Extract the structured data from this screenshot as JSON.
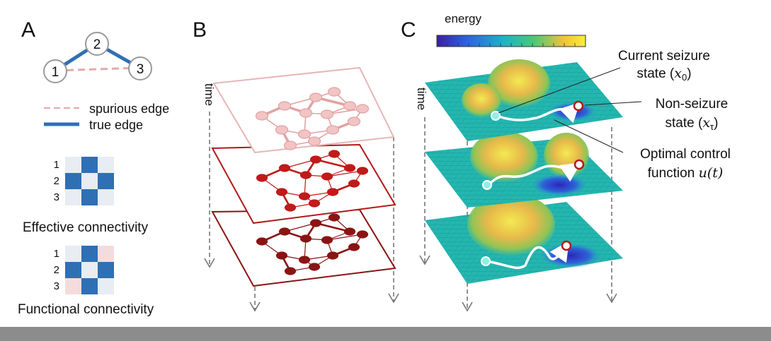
{
  "panels": {
    "a": {
      "letter": "A",
      "nodes": [
        "1",
        "2",
        "3"
      ],
      "legend": {
        "spurious": "spurious edge",
        "true_edge": "true edge"
      },
      "effective": {
        "title": "Effective connectivity",
        "row_labels": [
          "1",
          "2",
          "3"
        ],
        "cells": [
          [
            "#e8ecf3",
            "#2f6fb4",
            "#e8ecf3"
          ],
          [
            "#2f6fb4",
            "#e8ecf3",
            "#2f6fb4"
          ],
          [
            "#e8ecf3",
            "#2f6fb4",
            "#e8ecf3"
          ]
        ]
      },
      "functional": {
        "title": "Functional connectivity",
        "row_labels": [
          "1",
          "2",
          "3"
        ],
        "cells": [
          [
            "#e8ecf3",
            "#2f6fb4",
            "#f5dcdc"
          ],
          [
            "#2f6fb4",
            "#e8ecf3",
            "#2f6fb4"
          ],
          [
            "#f5dcdc",
            "#2f6fb4",
            "#e8ecf3"
          ]
        ]
      }
    },
    "b": {
      "letter": "B",
      "time_label": "time"
    },
    "c": {
      "letter": "C",
      "colorbar_label": "energy",
      "time_label": "time",
      "annotations": {
        "current_line1": "Current seizure",
        "current_line2": "state (",
        "current_sym": "x",
        "current_sub": "0",
        "nonseizure_line1": "Non-seizure",
        "nonseizure_line2": "state (",
        "nonseizure_sym": "x",
        "nonseizure_sub": "τ",
        "control_line1": "Optimal control",
        "control_line2": "function ",
        "control_sym": "u(t)",
        "close_paren": ")"
      }
    }
  },
  "colors": {
    "true_edge": "#2f6fb4",
    "spurious_edge": "#e3a9a9",
    "layer_top": "#e7b6b6",
    "layer_mid": "#b21818",
    "layer_bot": "#8a1414",
    "surface": "#25b5a8",
    "bottom_bar": "#8c8c8c"
  }
}
